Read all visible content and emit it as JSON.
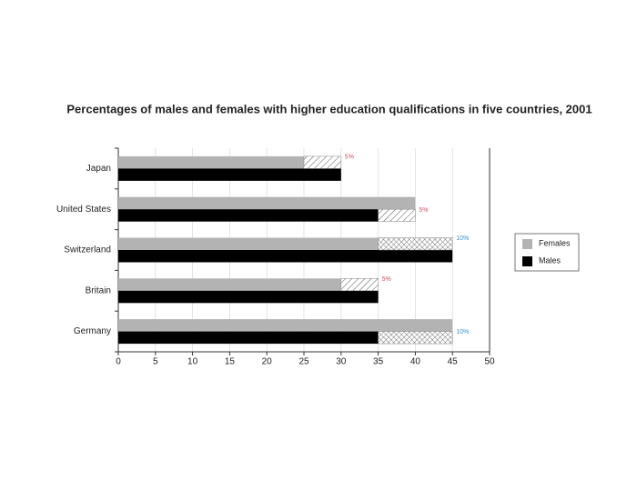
{
  "chart_data": {
    "type": "bar",
    "orientation": "horizontal",
    "title": "Percentages of males and females with higher education qualifications in five countries, 2001",
    "categories": [
      "Japan",
      "United States",
      "Switzerland",
      "Britain",
      "Germany"
    ],
    "series": [
      {
        "name": "Females",
        "color": "#b3b3b3",
        "values": [
          25,
          40,
          35,
          30,
          45
        ]
      },
      {
        "name": "Males",
        "color": "#000000",
        "values": [
          30,
          35,
          45,
          35,
          35
        ]
      }
    ],
    "gaps": {
      "values": [
        5,
        5,
        10,
        5,
        10
      ],
      "value_labels": [
        "5%",
        "5%",
        "10%",
        "5%",
        "10%"
      ],
      "colors": [
        "#d0506a",
        "#d0506a",
        "#3a8fd0",
        "#d0506a",
        "#3a8fd0"
      ]
    },
    "xlim": [
      0,
      50
    ],
    "xticks": [
      0,
      5,
      10,
      15,
      20,
      25,
      30,
      35,
      40,
      45,
      50
    ],
    "grid": true,
    "legend": "right"
  }
}
